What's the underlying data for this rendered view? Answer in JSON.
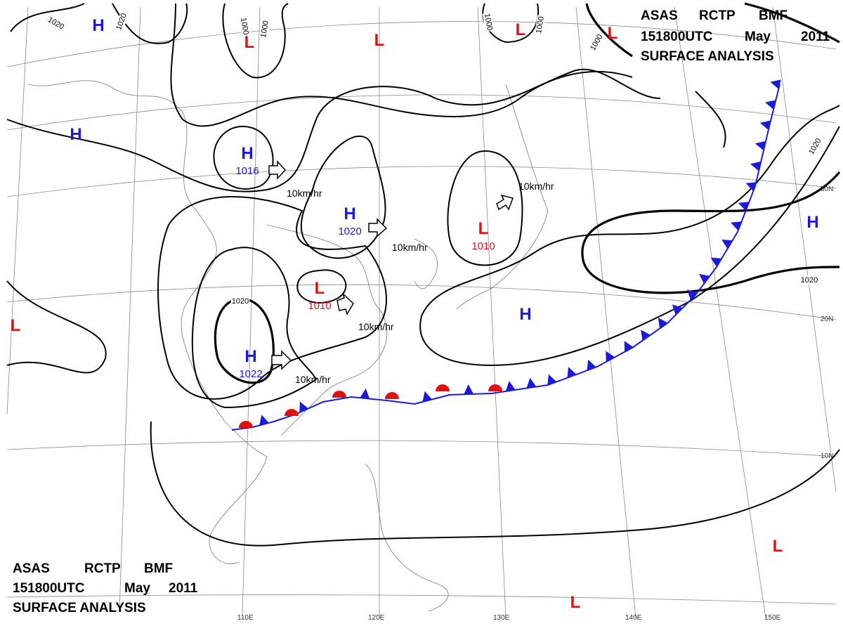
{
  "header": {
    "line1": [
      "ASAS",
      "RCTP",
      "BMF"
    ],
    "line2": [
      "151800UTC",
      "May",
      "2011"
    ],
    "line3": "SURFACE ANALYSIS"
  },
  "high_pressure": [
    {
      "symbol": "H"
    },
    {
      "symbol": "H"
    },
    {
      "symbol": "H",
      "pressure": "1016"
    },
    {
      "symbol": "H",
      "pressure": "1020"
    },
    {
      "symbol": "H",
      "pressure": "1022"
    },
    {
      "symbol": "H"
    },
    {
      "symbol": "H"
    }
  ],
  "low_pressure": [
    {
      "symbol": "L"
    },
    {
      "symbol": "L"
    },
    {
      "symbol": "L"
    },
    {
      "symbol": "L"
    },
    {
      "symbol": "L",
      "pressure": "1010"
    },
    {
      "symbol": "L",
      "pressure": "1010"
    },
    {
      "symbol": "L"
    },
    {
      "symbol": "L"
    },
    {
      "symbol": "L"
    }
  ],
  "isobar_labels": [
    "1020",
    "1020",
    "1000",
    "1000",
    "1000",
    "1000",
    "1000",
    "1020",
    "1020",
    "1020"
  ],
  "motion_labels": [
    "10km/hr",
    "10km/hr",
    "10km/hr",
    "10km/hr",
    "10km/hr"
  ],
  "latitude_labels": [
    "30N",
    "20N",
    "10N"
  ],
  "longitude_labels": [
    "110E",
    "120E",
    "130E",
    "140E",
    "150E"
  ]
}
